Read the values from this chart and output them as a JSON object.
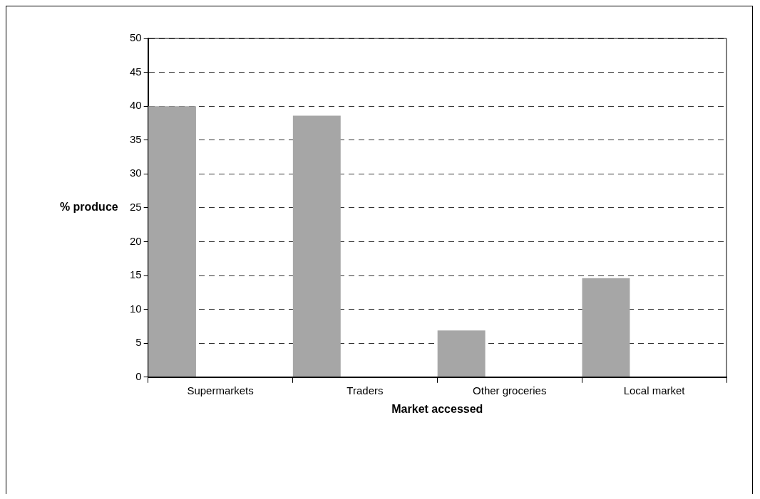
{
  "chart_data": {
    "type": "bar",
    "xlabel": "Market accessed",
    "ylabel": "% produce",
    "categories": [
      "Supermarkets",
      "Traders",
      "Other groceries",
      "Local market"
    ],
    "values": [
      40,
      38.6,
      6.9,
      14.6
    ],
    "color": "#a6a6a6",
    "ylim": [
      0,
      50
    ],
    "yticks": [
      0,
      5,
      10,
      15,
      20,
      25,
      30,
      35,
      40,
      45,
      50
    ],
    "grid": "y",
    "legend": false
  }
}
